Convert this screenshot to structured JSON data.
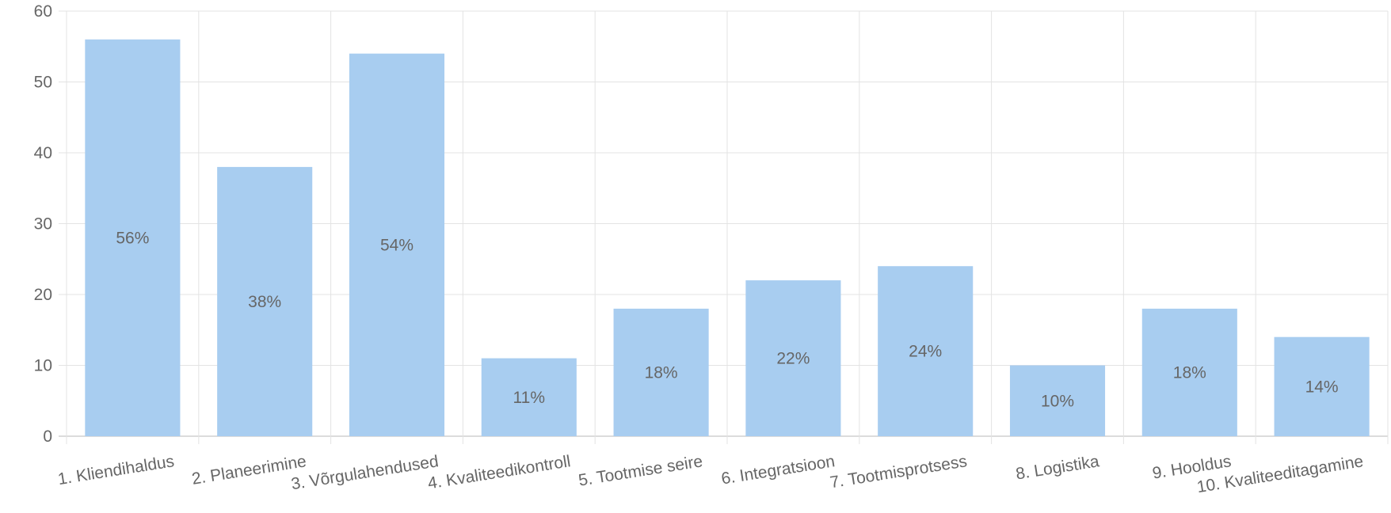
{
  "chart_data": {
    "type": "bar",
    "categories": [
      "1. Kliendihaldus",
      "2. Planeerimine",
      "3. Võrgulahendused",
      "4. Kvaliteedikontroll",
      "5. Tootmise seire",
      "6. Integratsioon",
      "7. Tootmisprotsess",
      "8. Logistika",
      "9. Hooldus",
      "10. Kvaliteeditagamine"
    ],
    "values": [
      56,
      38,
      54,
      11,
      18,
      22,
      24,
      10,
      18,
      14
    ],
    "data_labels": [
      "56%",
      "38%",
      "54%",
      "11%",
      "18%",
      "22%",
      "24%",
      "10%",
      "18%",
      "14%"
    ],
    "y_ticks": [
      "0",
      "10",
      "20",
      "30",
      "40",
      "50",
      "60"
    ],
    "ylim": [
      0,
      60
    ],
    "grid": true,
    "bar_color": "#a8cdf0",
    "grid_color": "#e3e3e3",
    "text_color": "#666666"
  }
}
